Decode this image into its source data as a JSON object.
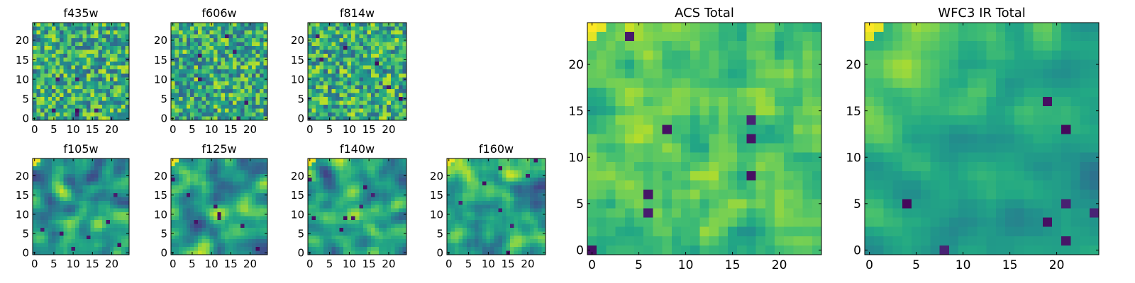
{
  "chart_data": [
    {
      "type": "heatmap",
      "title": "f435w",
      "xticks": [
        "0",
        "5",
        "10",
        "15",
        "20"
      ],
      "yticks": [
        "0",
        "5",
        "10",
        "15",
        "20"
      ],
      "xlim": [
        -0.5,
        24.5
      ],
      "ylim": [
        -0.5,
        24.5
      ],
      "rows": 25,
      "cols": 25,
      "colormap": "viridis",
      "texture": "noise"
    },
    {
      "type": "heatmap",
      "title": "f606w",
      "xticks": [
        "0",
        "5",
        "10",
        "15",
        "20"
      ],
      "yticks": [
        "0",
        "5",
        "10",
        "15",
        "20"
      ],
      "xlim": [
        -0.5,
        24.5
      ],
      "ylim": [
        -0.5,
        24.5
      ],
      "rows": 25,
      "cols": 25,
      "colormap": "viridis",
      "texture": "noise"
    },
    {
      "type": "heatmap",
      "title": "f814w",
      "xticks": [
        "0",
        "5",
        "10",
        "15",
        "20"
      ],
      "yticks": [
        "0",
        "5",
        "10",
        "15",
        "20"
      ],
      "xlim": [
        -0.5,
        24.5
      ],
      "ylim": [
        -0.5,
        24.5
      ],
      "rows": 25,
      "cols": 25,
      "colormap": "viridis",
      "texture": "noise"
    },
    {
      "type": "heatmap",
      "title": "f105w",
      "xticks": [
        "0",
        "5",
        "10",
        "15",
        "20"
      ],
      "yticks": [
        "0",
        "5",
        "10",
        "15",
        "20"
      ],
      "xlim": [
        -0.5,
        24.5
      ],
      "ylim": [
        -0.5,
        24.5
      ],
      "rows": 25,
      "cols": 25,
      "colormap": "viridis",
      "texture": "smooth"
    },
    {
      "type": "heatmap",
      "title": "f125w",
      "xticks": [
        "0",
        "5",
        "10",
        "15",
        "20"
      ],
      "yticks": [
        "0",
        "5",
        "10",
        "15",
        "20"
      ],
      "xlim": [
        -0.5,
        24.5
      ],
      "ylim": [
        -0.5,
        24.5
      ],
      "rows": 25,
      "cols": 25,
      "colormap": "viridis",
      "texture": "smooth"
    },
    {
      "type": "heatmap",
      "title": "f140w",
      "xticks": [
        "0",
        "5",
        "10",
        "15",
        "20"
      ],
      "yticks": [
        "0",
        "5",
        "10",
        "15",
        "20"
      ],
      "xlim": [
        -0.5,
        24.5
      ],
      "ylim": [
        -0.5,
        24.5
      ],
      "rows": 25,
      "cols": 25,
      "colormap": "viridis",
      "texture": "smooth"
    },
    {
      "type": "heatmap",
      "title": "f160w",
      "xticks": [
        "0",
        "5",
        "10",
        "15",
        "20"
      ],
      "yticks": [
        "0",
        "5",
        "10",
        "15",
        "20"
      ],
      "xlim": [
        -0.5,
        24.5
      ],
      "ylim": [
        -0.5,
        24.5
      ],
      "rows": 25,
      "cols": 25,
      "colormap": "viridis",
      "texture": "smooth"
    },
    {
      "type": "heatmap",
      "title": "ACS Total",
      "xticks": [
        "0",
        "5",
        "10",
        "15",
        "20"
      ],
      "yticks": [
        "0",
        "5",
        "10",
        "15",
        "20"
      ],
      "xlim": [
        -0.5,
        24.5
      ],
      "ylim": [
        -0.5,
        24.5
      ],
      "rows": 25,
      "cols": 25,
      "colormap": "viridis",
      "texture": "bright"
    },
    {
      "type": "heatmap",
      "title": "WFC3 IR Total",
      "xticks": [
        "0",
        "5",
        "10",
        "15",
        "20"
      ],
      "yticks": [
        "0",
        "5",
        "10",
        "15",
        "20"
      ],
      "xlim": [
        -0.5,
        24.5
      ],
      "ylim": [
        -0.5,
        24.5
      ],
      "rows": 25,
      "cols": 25,
      "colormap": "viridis",
      "texture": "gradient"
    }
  ]
}
